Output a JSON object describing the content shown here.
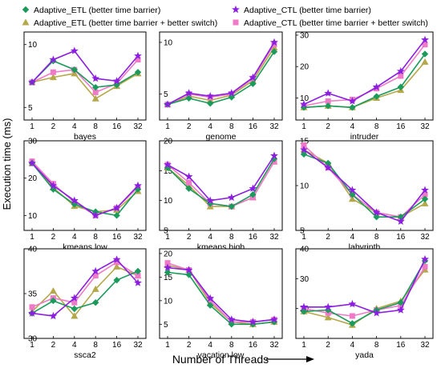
{
  "figure": {
    "ylabel": "Execution time (ms)",
    "xlabel": "Number of Threads"
  },
  "legend": {
    "placement": "top",
    "entries": [
      {
        "label": "Adaptive_ETL (better time barrier)",
        "color": "#1a9b5c",
        "marker": "diamond"
      },
      {
        "label": "Adaptive_CTL (better time barrier)",
        "color": "#8b1ee0",
        "marker": "star"
      },
      {
        "label": "Adaptive_ETL (better time barrier + better switch)",
        "color": "#b5a84a",
        "marker": "triangle"
      },
      {
        "label": "Adaptive_CTL (better time barrier + better switch)",
        "color": "#f07ac8",
        "marker": "square"
      }
    ]
  },
  "chart_data": [
    {
      "type": "line",
      "title": "bayes",
      "categories": [
        "1",
        "2",
        "4",
        "8",
        "16",
        "32"
      ],
      "ylim": [
        4,
        11
      ],
      "yticks": [
        5,
        10
      ],
      "series": [
        {
          "name": "Adaptive_ETL (better time barrier)",
          "values": [
            7.0,
            8.7,
            8.0,
            6.6,
            6.8,
            7.8
          ]
        },
        {
          "name": "Adaptive_CTL (better time barrier)",
          "values": [
            7.0,
            8.8,
            9.5,
            7.3,
            7.1,
            9.1
          ]
        },
        {
          "name": "Adaptive_ETL (better time barrier + better switch)",
          "values": [
            7.0,
            7.4,
            7.7,
            5.7,
            6.7,
            7.7
          ]
        },
        {
          "name": "Adaptive_CTL (better time barrier + better switch)",
          "values": [
            7.0,
            7.8,
            8.0,
            6.2,
            6.9,
            8.8
          ]
        }
      ]
    },
    {
      "type": "line",
      "title": "genome",
      "categories": [
        "1",
        "2",
        "4",
        "8",
        "16",
        "32"
      ],
      "ylim": [
        2.5,
        11
      ],
      "yticks": [
        5,
        10
      ],
      "series": [
        {
          "name": "Adaptive_ETL (better time barrier)",
          "values": [
            4.0,
            4.6,
            4.1,
            4.7,
            6.0,
            9.1
          ]
        },
        {
          "name": "Adaptive_CTL (better time barrier)",
          "values": [
            4.0,
            5.1,
            4.8,
            5.1,
            6.6,
            10.0
          ]
        },
        {
          "name": "Adaptive_ETL (better time barrier + better switch)",
          "values": [
            4.0,
            4.8,
            4.4,
            4.9,
            6.3,
            9.5
          ]
        },
        {
          "name": "Adaptive_CTL (better time barrier + better switch)",
          "values": [
            4.0,
            5.0,
            4.7,
            5.0,
            6.5,
            9.8
          ]
        }
      ]
    },
    {
      "type": "line",
      "title": "intruder",
      "categories": [
        "1",
        "2",
        "4",
        "8",
        "16",
        "32"
      ],
      "ylim": [
        3,
        31
      ],
      "yticks": [
        10,
        20,
        30
      ],
      "series": [
        {
          "name": "Adaptive_ETL (better time barrier)",
          "values": [
            7.0,
            7.5,
            7.0,
            10.5,
            13.5,
            24.0
          ]
        },
        {
          "name": "Adaptive_CTL (better time barrier)",
          "values": [
            8.0,
            11.5,
            9.0,
            13.5,
            18.5,
            28.5
          ]
        },
        {
          "name": "Adaptive_ETL (better time barrier + better switch)",
          "values": [
            7.0,
            7.5,
            7.0,
            10.0,
            12.5,
            21.5
          ]
        },
        {
          "name": "Adaptive_CTL (better time barrier + better switch)",
          "values": [
            7.5,
            9.0,
            9.5,
            13.0,
            17.0,
            27.0
          ]
        }
      ]
    },
    {
      "type": "line",
      "title": "kmeans low",
      "categories": [
        "1",
        "2",
        "4",
        "8",
        "16",
        "32"
      ],
      "ylim": [
        6,
        30
      ],
      "yticks": [
        10,
        20,
        30
      ],
      "series": [
        {
          "name": "Adaptive_ETL (better time barrier)",
          "values": [
            24.0,
            17.0,
            13.0,
            11.0,
            10.0,
            17.0
          ]
        },
        {
          "name": "Adaptive_CTL (better time barrier)",
          "values": [
            24.0,
            18.0,
            14.0,
            10.0,
            12.0,
            18.0
          ]
        },
        {
          "name": "Adaptive_ETL (better time barrier + better switch)",
          "values": [
            24.0,
            17.5,
            12.5,
            11.0,
            11.5,
            16.5
          ]
        },
        {
          "name": "Adaptive_CTL (better time barrier + better switch)",
          "values": [
            24.5,
            18.5,
            13.5,
            10.0,
            12.0,
            17.5
          ]
        }
      ]
    },
    {
      "type": "line",
      "title": "kmeans high",
      "categories": [
        "1",
        "2",
        "4",
        "8",
        "16",
        "32"
      ],
      "ylim": [
        5,
        20
      ],
      "yticks": [
        5,
        10,
        15,
        20
      ],
      "series": [
        {
          "name": "Adaptive_ETL (better time barrier)",
          "values": [
            15.5,
            12.0,
            9.5,
            9.0,
            11.0,
            17.0
          ]
        },
        {
          "name": "Adaptive_CTL (better time barrier)",
          "values": [
            16.0,
            14.0,
            10.0,
            10.5,
            12.0,
            17.5
          ]
        },
        {
          "name": "Adaptive_ETL (better time barrier + better switch)",
          "values": [
            15.5,
            12.5,
            9.0,
            9.0,
            10.5,
            16.5
          ]
        },
        {
          "name": "Adaptive_CTL (better time barrier + better switch)",
          "values": [
            16.0,
            13.0,
            9.5,
            9.0,
            10.5,
            16.5
          ]
        }
      ]
    },
    {
      "type": "line",
      "title": "labyrinth",
      "categories": [
        "1",
        "2",
        "4",
        "8",
        "16",
        "32"
      ],
      "ylim": [
        5,
        15
      ],
      "yticks": [
        5,
        10,
        15
      ],
      "series": [
        {
          "name": "Adaptive_ETL (better time barrier)",
          "values": [
            13.5,
            12.5,
            9.0,
            6.5,
            6.5,
            8.5
          ]
        },
        {
          "name": "Adaptive_CTL (better time barrier)",
          "values": [
            14.0,
            12.0,
            9.5,
            7.0,
            6.0,
            9.5
          ]
        },
        {
          "name": "Adaptive_ETL (better time barrier + better switch)",
          "values": [
            14.0,
            12.5,
            8.5,
            7.0,
            6.5,
            8.0
          ]
        },
        {
          "name": "Adaptive_CTL (better time barrier + better switch)",
          "values": [
            14.5,
            12.0,
            9.0,
            7.0,
            6.5,
            9.0
          ]
        }
      ]
    },
    {
      "type": "line",
      "title": "ssca2",
      "categories": [
        "1",
        "2",
        "4",
        "8",
        "16",
        "32"
      ],
      "ylim": [
        30,
        40
      ],
      "yticks": [
        30,
        35,
        40
      ],
      "series": [
        {
          "name": "Adaptive_ETL (better time barrier)",
          "values": [
            32.8,
            34.2,
            33.3,
            34.0,
            36.5,
            37.5
          ]
        },
        {
          "name": "Adaptive_CTL (better time barrier)",
          "values": [
            32.8,
            32.5,
            34.5,
            37.5,
            38.8,
            36.2
          ]
        },
        {
          "name": "Adaptive_ETL (better time barrier + better switch)",
          "values": [
            33.0,
            35.3,
            32.5,
            35.5,
            38.0,
            37.0
          ]
        },
        {
          "name": "Adaptive_CTL (better time barrier + better switch)",
          "values": [
            33.5,
            34.5,
            34.0,
            37.0,
            38.5,
            37.0
          ]
        }
      ]
    },
    {
      "type": "line",
      "title": "vacation low",
      "categories": [
        "1",
        "2",
        "4",
        "8",
        "16",
        "32"
      ],
      "ylim": [
        2,
        21
      ],
      "yticks": [
        5,
        10,
        15,
        20
      ],
      "series": [
        {
          "name": "Adaptive_ETL (better time barrier)",
          "values": [
            16.0,
            15.5,
            9.0,
            5.0,
            5.0,
            5.5
          ]
        },
        {
          "name": "Adaptive_CTL (better time barrier)",
          "values": [
            17.0,
            16.5,
            10.5,
            6.0,
            5.5,
            6.0
          ]
        },
        {
          "name": "Adaptive_ETL (better time barrier + better switch)",
          "values": [
            17.5,
            16.5,
            9.5,
            5.5,
            5.0,
            5.5
          ]
        },
        {
          "name": "Adaptive_CTL (better time barrier + better switch)",
          "values": [
            18.0,
            16.5,
            10.0,
            5.5,
            5.5,
            6.0
          ]
        }
      ]
    },
    {
      "type": "line",
      "title": "yada",
      "categories": [
        "1",
        "2",
        "4",
        "8",
        "16",
        "32"
      ],
      "ylim": [
        10,
        40
      ],
      "yticks": [
        20,
        30,
        40
      ],
      "series": [
        {
          "name": "Adaptive_ETL (better time barrier)",
          "values": [
            19.0,
            19.5,
            15.0,
            19.5,
            22.0,
            36.0
          ]
        },
        {
          "name": "Adaptive_CTL (better time barrier)",
          "values": [
            20.5,
            20.5,
            21.5,
            18.5,
            19.5,
            36.5
          ]
        },
        {
          "name": "Adaptive_ETL (better time barrier + better switch)",
          "values": [
            19.0,
            17.0,
            14.5,
            20.0,
            22.5,
            33.0
          ]
        },
        {
          "name": "Adaptive_CTL (better time barrier + better switch)",
          "values": [
            20.0,
            18.5,
            17.5,
            19.5,
            21.0,
            34.0
          ]
        }
      ]
    }
  ]
}
